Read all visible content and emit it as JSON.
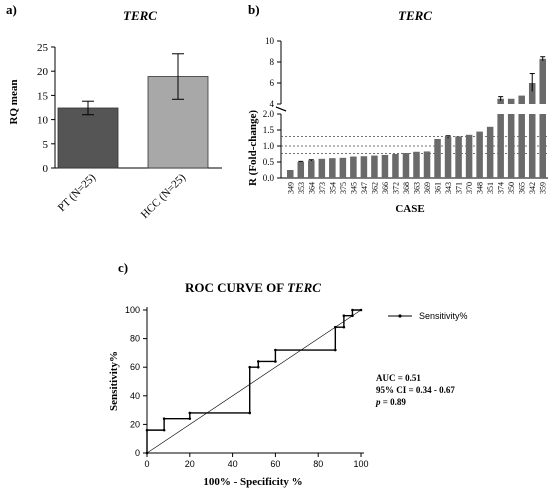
{
  "chart_data": [
    {
      "panel": "a)",
      "type": "bar",
      "title": "TERC",
      "ylabel": "RQ mean",
      "categories": [
        "PT (N=25)",
        "HCC (N=25)"
      ],
      "values": [
        12.4,
        18.9
      ],
      "errors": [
        [
          11.0,
          13.8
        ],
        [
          14.2,
          23.6
        ]
      ],
      "ylim": [
        0,
        25
      ],
      "yticks": [
        0,
        5,
        10,
        15,
        20,
        25
      ],
      "colors": [
        "#555555",
        "#a8a8a8"
      ]
    },
    {
      "panel": "b)",
      "type": "bar",
      "title": "TERC",
      "xlabel": "CASE",
      "ylabel": "R (Fold-change)",
      "categories": [
        "349",
        "353",
        "364",
        "373",
        "354",
        "375",
        "345",
        "347",
        "362",
        "366",
        "372",
        "368",
        "363",
        "369",
        "361",
        "343",
        "371",
        "370",
        "348",
        "351",
        "374",
        "350",
        "365",
        "342",
        "359"
      ],
      "values": [
        0.25,
        0.5,
        0.55,
        0.6,
        0.62,
        0.63,
        0.67,
        0.68,
        0.7,
        0.72,
        0.75,
        0.78,
        0.82,
        0.83,
        1.22,
        1.28,
        1.3,
        1.35,
        1.45,
        1.6,
        4.5,
        4.5,
        4.8,
        6.0,
        8.3
      ],
      "errors": [
        [
          0.5,
          0.52
        ],
        [
          0.53,
          0.57
        ],
        [
          1.24,
          1.32
        ],
        [
          4.3,
          4.7
        ],
        [
          5.2,
          6.9
        ],
        [
          8.1,
          8.5
        ]
      ],
      "error_index": [
        1,
        2,
        15,
        20,
        23,
        24
      ],
      "ylim_lower": [
        0,
        2.0
      ],
      "ylim_upper": [
        4,
        10
      ],
      "yticks_lower": [
        "0.0",
        "0.5",
        "1.0",
        "1.5",
        "2.0"
      ],
      "yticks_upper": [
        "4",
        "6",
        "8",
        "10"
      ],
      "reference_lines": [
        0.77,
        1.0,
        1.3
      ],
      "color": "#6a6a6a"
    },
    {
      "panel": "c)",
      "type": "line",
      "title": "ROC CURVE OF ",
      "title_italic": "TERC",
      "xlabel": "100% - Specificity %",
      "ylabel": "Sensitivity%",
      "xlim": [
        0,
        100
      ],
      "ylim": [
        0,
        100
      ],
      "xticks": [
        0,
        20,
        40,
        60,
        80,
        100
      ],
      "yticks": [
        0,
        20,
        40,
        60,
        80,
        100
      ],
      "series": [
        {
          "name": "Sensitivity%",
          "x": [
            0,
            0,
            8,
            8,
            20,
            20,
            48,
            48,
            52,
            52,
            60,
            60,
            88,
            88,
            92,
            92,
            96,
            96,
            100
          ],
          "y": [
            0,
            16,
            16,
            24,
            24,
            28,
            28,
            60,
            60,
            64,
            64,
            72,
            72,
            88,
            88,
            96,
            96,
            100,
            100
          ]
        }
      ],
      "diagonal": true,
      "stats": {
        "auc": "AUC = 0.51",
        "ci": "95% CI = 0.34 - 0.67",
        "p_label": "p",
        "p_value": " = 0.89"
      }
    }
  ]
}
